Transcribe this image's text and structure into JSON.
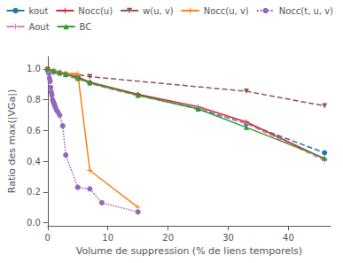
{
  "chart_data": {
    "type": "line",
    "x_label": "Volume de suppression (% de liens temporels)",
    "y_label": "Ratio des max(|VGa|)",
    "xlim": [
      0,
      47
    ],
    "ylim": [
      -0.02,
      1.08
    ],
    "xticks": [
      0,
      10,
      20,
      30,
      40
    ],
    "yticks": [
      {
        "value": 0,
        "label": "0.0"
      },
      0.2,
      0.4,
      0.6,
      0.8,
      {
        "value": 1,
        "label": "1.0"
      }
    ],
    "grid": false,
    "legend": "upper right",
    "series": [
      {
        "name": "kout",
        "color": "#1f77b4",
        "marker": "circle",
        "line_style": "dashed",
        "x": [
          0,
          1,
          2,
          3,
          5,
          7,
          15,
          25,
          33,
          46
        ],
        "values": [
          1.0,
          0.985,
          0.975,
          0.965,
          0.945,
          0.91,
          0.83,
          0.74,
          0.645,
          0.455
        ]
      },
      {
        "name": "Nocc(u)",
        "color": "#d62728",
        "marker": "plus",
        "line_style": "solid",
        "x": [
          0,
          1,
          2,
          3,
          5,
          7,
          15,
          25,
          33,
          46
        ],
        "values": [
          1.0,
          0.988,
          0.978,
          0.968,
          0.948,
          0.915,
          0.835,
          0.755,
          0.655,
          0.415
        ]
      },
      {
        "name": "w(u, v)",
        "color": "#8c564b",
        "marker": "triangle_down",
        "line_style": "dashed",
        "x": [
          0,
          7,
          33,
          46
        ],
        "values": [
          0.995,
          0.95,
          0.855,
          0.76
        ]
      },
      {
        "name": "Nocc(u, v)",
        "color": "#ff7f0e",
        "marker": "plus",
        "line_style": "solid",
        "x": [
          0,
          1,
          2,
          3,
          5,
          7,
          15
        ],
        "values": [
          1.0,
          0.99,
          0.98,
          0.97,
          0.97,
          0.34,
          0.1
        ]
      },
      {
        "name": "Nocc(t, u, v)",
        "color": "#9467bd",
        "marker": "circle",
        "line_style": "dotted",
        "x": [
          0.1,
          0.2,
          0.3,
          0.4,
          0.5,
          0.6,
          0.7,
          0.8,
          0.9,
          1.0,
          1.1,
          1.2,
          1.3,
          1.5,
          1.7,
          2.0,
          2.5,
          3.0,
          5.0,
          7.0,
          9.0,
          15.0
        ],
        "values": [
          0.98,
          0.97,
          0.94,
          0.92,
          0.88,
          0.85,
          0.83,
          0.8,
          0.79,
          0.78,
          0.77,
          0.76,
          0.75,
          0.73,
          0.72,
          0.7,
          0.63,
          0.44,
          0.23,
          0.22,
          0.13,
          0.07
        ]
      },
      {
        "name": "Aout",
        "color": "#e377c2",
        "marker": "plus",
        "line_style": "dashed",
        "x": [
          0,
          1,
          2,
          3,
          5,
          7,
          15,
          25,
          33,
          46
        ],
        "values": [
          0.985,
          0.975,
          0.965,
          0.955,
          0.935,
          0.905,
          0.825,
          0.75,
          0.645,
          0.405
        ]
      },
      {
        "name": "BC",
        "color": "#2ca02c",
        "marker": "triangle",
        "line_style": "solid",
        "x": [
          0,
          1,
          2,
          3,
          5,
          7,
          15,
          25,
          33,
          46
        ],
        "values": [
          1.0,
          0.985,
          0.975,
          0.965,
          0.94,
          0.91,
          0.83,
          0.74,
          0.62,
          0.42
        ]
      }
    ]
  }
}
